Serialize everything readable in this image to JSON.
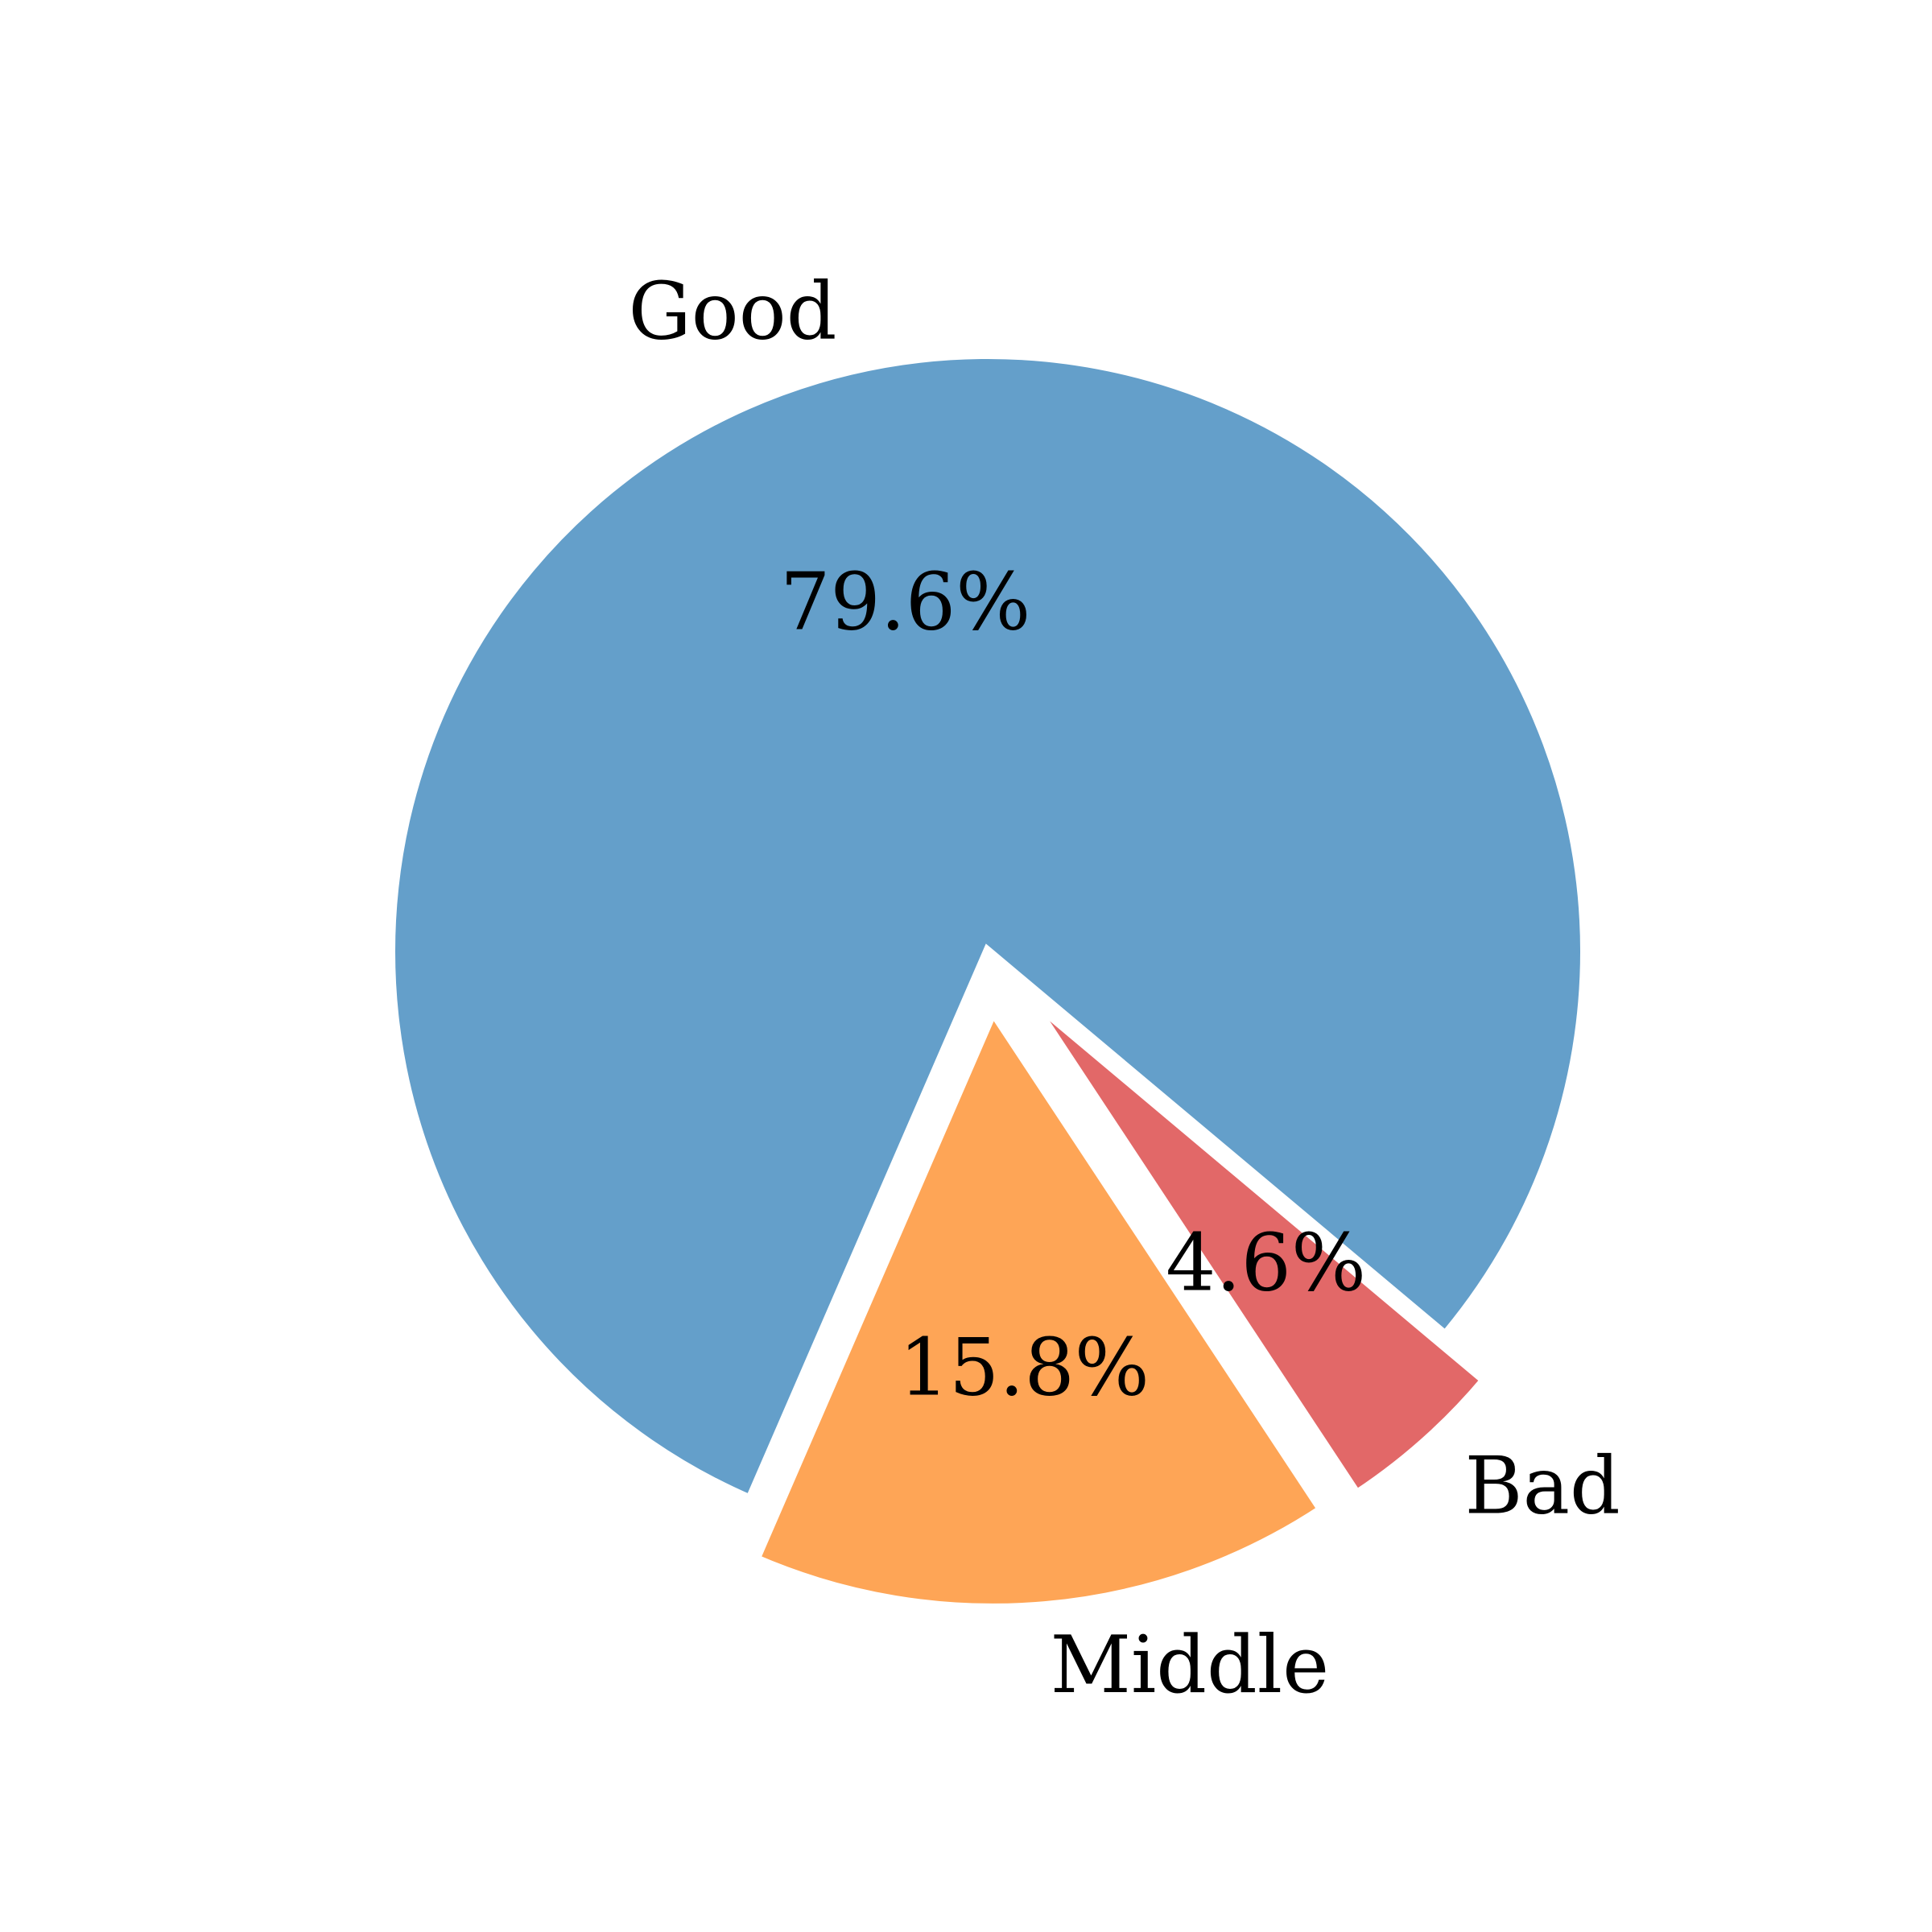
{
  "chart_data": {
    "type": "pie",
    "title": "",
    "categories": [
      "Good",
      "Middle",
      "Bad"
    ],
    "values": [
      79.6,
      15.8,
      4.6
    ],
    "labels": [
      "Good",
      "Middle",
      "Bad"
    ],
    "percent_labels": [
      "79.6%",
      "15.8%",
      "4.6%"
    ],
    "colors": [
      "#649fca",
      "#fea556",
      "#e26868"
    ],
    "exploded": [
      false,
      true,
      true
    ],
    "edge_color": "#ffffff",
    "legend": "none"
  }
}
